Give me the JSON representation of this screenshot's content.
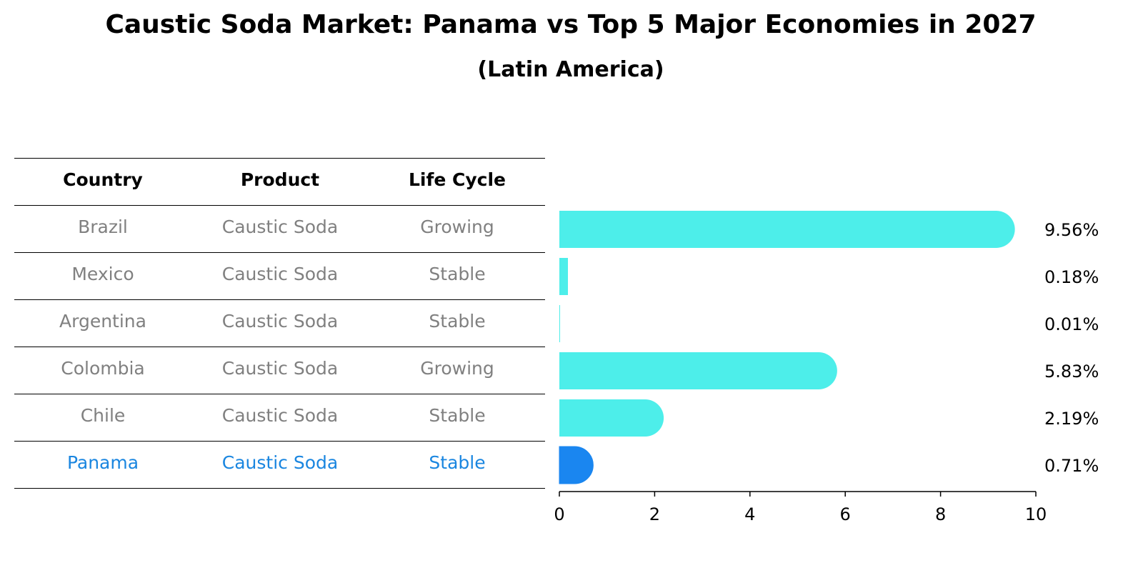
{
  "title": "Caustic Soda Market: Panama vs Top 5 Major Economies in 2027",
  "subtitle": "(Latin America)",
  "table": {
    "headers": [
      "Country",
      "Product",
      "Life Cycle"
    ],
    "rows": [
      {
        "country": "Brazil",
        "product": "Caustic Soda",
        "life_cycle": "Growing"
      },
      {
        "country": "Mexico",
        "product": "Caustic Soda",
        "life_cycle": "Stable"
      },
      {
        "country": "Argentina",
        "product": "Caustic Soda",
        "life_cycle": "Stable"
      },
      {
        "country": "Colombia",
        "product": "Caustic Soda",
        "life_cycle": "Growing"
      },
      {
        "country": "Chile",
        "product": "Caustic Soda",
        "life_cycle": "Stable"
      },
      {
        "country": "Panama",
        "product": "Caustic Soda",
        "life_cycle": "Stable"
      }
    ],
    "highlight_row": "Panama"
  },
  "colors": {
    "bar": "#4deeea",
    "highlight_bar": "#1a86f0",
    "row_text": "#808080",
    "highlight_text": "#1a86e0"
  },
  "chart_data": {
    "type": "bar",
    "orientation": "horizontal",
    "categories": [
      "Brazil",
      "Mexico",
      "Argentina",
      "Colombia",
      "Chile",
      "Panama"
    ],
    "values": [
      9.56,
      0.18,
      0.01,
      5.83,
      2.19,
      0.71
    ],
    "value_labels": [
      "9.56%",
      "0.18%",
      "0.01%",
      "5.83%",
      "2.19%",
      "0.71%"
    ],
    "xlim": [
      0,
      10
    ],
    "xticks": [
      0,
      2,
      4,
      6,
      8,
      10
    ],
    "highlight": "Panama",
    "grid": false
  }
}
